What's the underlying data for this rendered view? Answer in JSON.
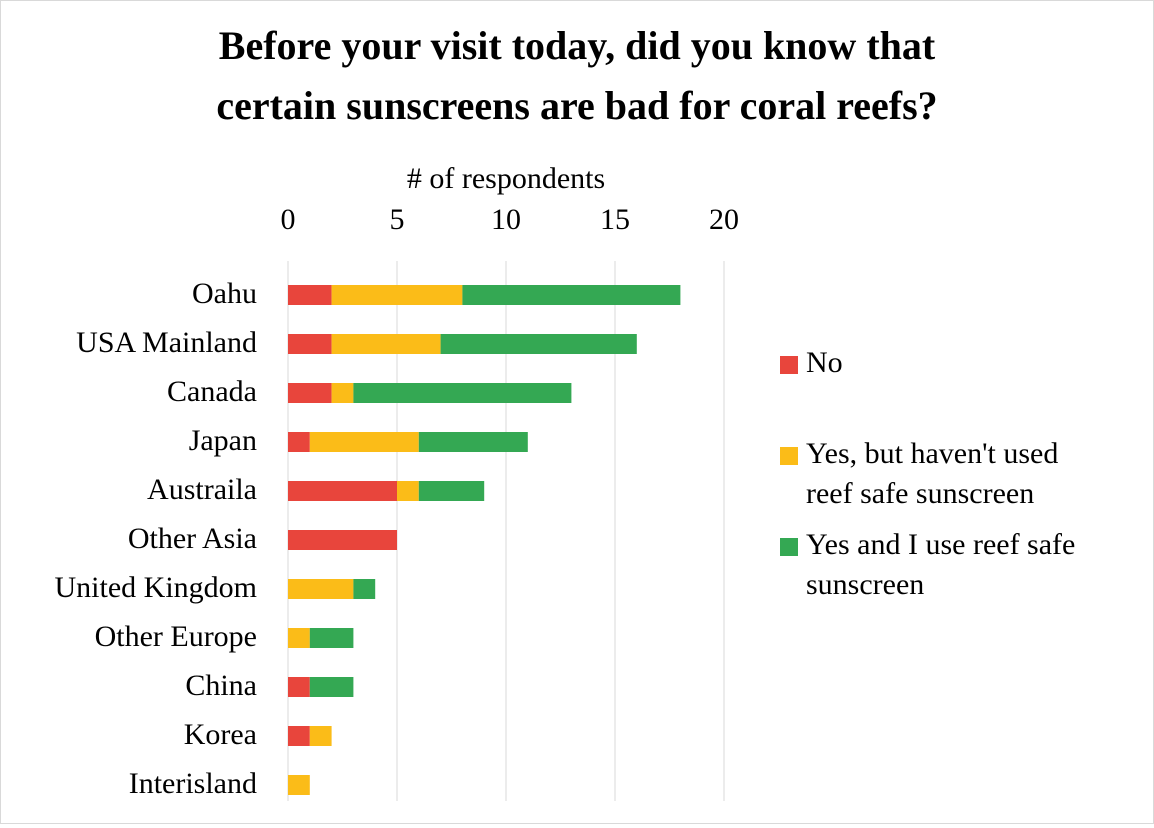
{
  "chart_data": {
    "type": "bar",
    "orientation": "horizontal",
    "stacked": true,
    "title_lines": [
      "Before your visit today, did you know that",
      "certain sunscreens are bad for coral reefs?"
    ],
    "xlabel": "# of respondents",
    "xlim": [
      0,
      20
    ],
    "xticks": [
      "0",
      "5",
      "10",
      "15",
      "20"
    ],
    "grid": true,
    "legend_position": "right",
    "categories": [
      "Oahu",
      "USA Mainland",
      "Canada",
      "Japan",
      "Austraila",
      "Other Asia",
      "United Kingdom",
      "Other Europe",
      "China",
      "Korea",
      "Interisland"
    ],
    "series": [
      {
        "name": "No",
        "color": "#e8453c",
        "values": [
          2,
          2,
          2,
          1,
          5,
          5,
          0,
          0,
          1,
          1,
          0
        ]
      },
      {
        "name": "Yes, but haven't used reef safe sunscreen",
        "color": "#fbbc18",
        "values": [
          6,
          5,
          1,
          5,
          1,
          0,
          3,
          1,
          0,
          1,
          1
        ]
      },
      {
        "name": "Yes and I use reef safe sunscreen",
        "color": "#34a853",
        "values": [
          10,
          9,
          10,
          5,
          3,
          0,
          1,
          2,
          2,
          0,
          0
        ]
      }
    ],
    "legend": [
      {
        "lines": [
          "No"
        ]
      },
      {
        "lines": [
          "Yes, but haven't used",
          "reef safe sunscreen"
        ]
      },
      {
        "lines": [
          "Yes and I use reef safe",
          "sunscreen"
        ]
      }
    ]
  }
}
